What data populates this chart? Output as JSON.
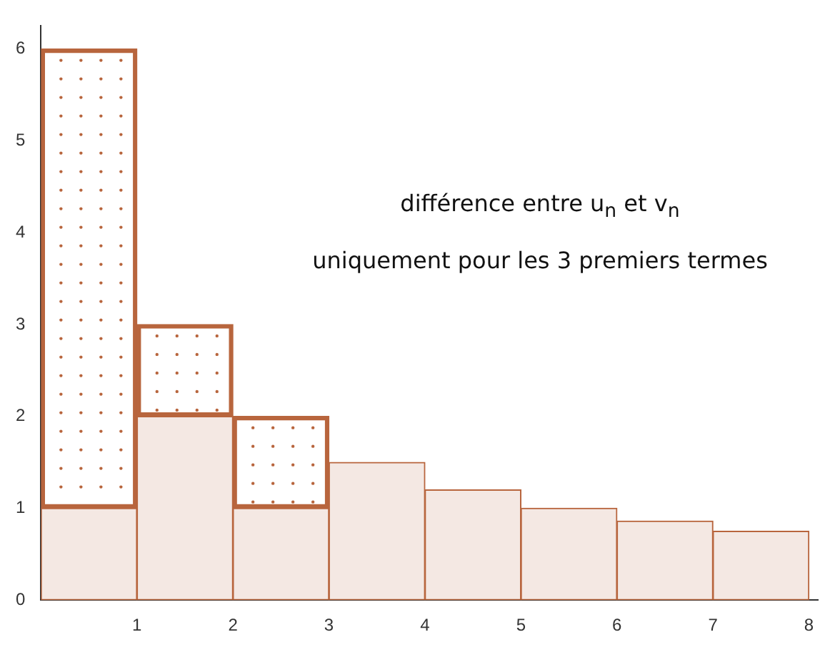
{
  "chart_data": {
    "type": "bar",
    "x": [
      0.5,
      1.5,
      2.5,
      3.5,
      4.5,
      5.5,
      6.5,
      7.5
    ],
    "stacked": true,
    "series": [
      {
        "color": "#f4e8e3",
        "values": [
          1,
          2,
          1,
          1.5,
          1.2,
          1,
          0.86,
          0.75
        ]
      },
      {
        "color": "#b8653d",
        "values": [
          5,
          1,
          1,
          null,
          null,
          null,
          null,
          null
        ]
      }
    ],
    "xlim": [
      0,
      8.1
    ],
    "xticks": [
      {
        "value": 0,
        "label": null
      },
      1,
      2,
      3,
      4,
      5,
      6,
      7,
      8
    ],
    "ylim": [
      0,
      6.25
    ],
    "yticks": [
      0,
      1,
      2,
      3,
      4,
      5,
      6
    ],
    "grid": false,
    "legend": false,
    "annotations": [
      "différence entre u$_{n}$ et v$_{n}$",
      "uniquement pour les 3 premiers termes"
    ]
  }
}
